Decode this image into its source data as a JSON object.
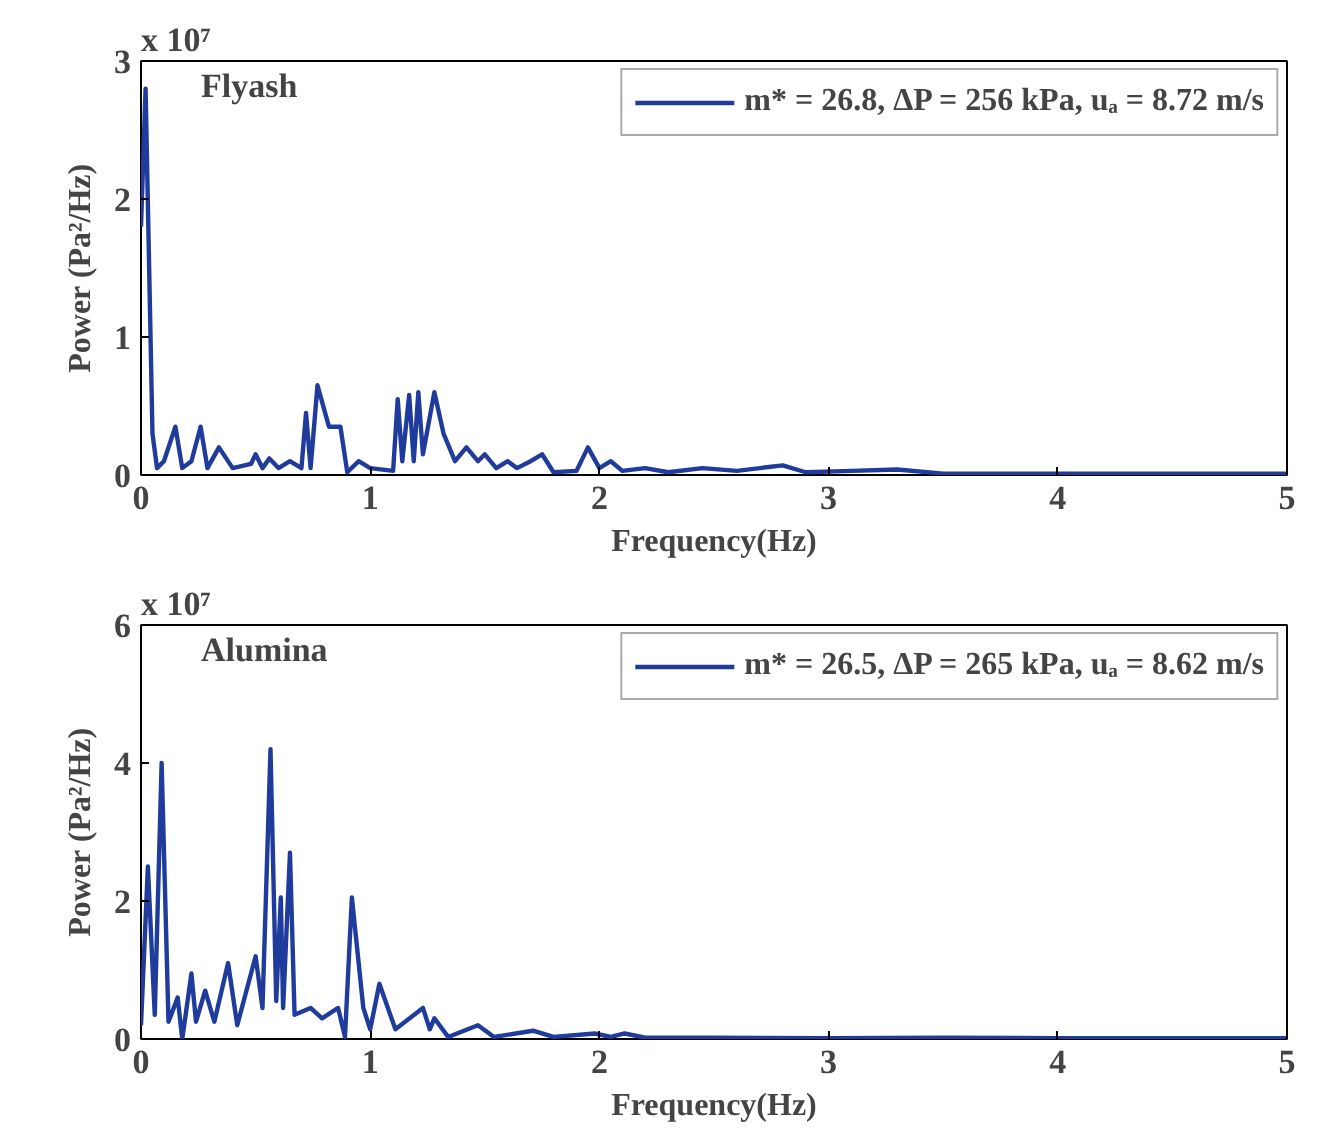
{
  "chart_data": [
    {
      "type": "line",
      "xlabel": "Frequency(Hz)",
      "ylabel": "Power (Pa²/Hz)",
      "annotations": [
        "Flyash",
        "x 10⁷"
      ],
      "xlim": [
        0,
        5
      ],
      "ylim": [
        0,
        3
      ],
      "xticks": [
        0,
        1,
        2,
        3,
        4,
        5
      ],
      "yticks": [
        0,
        1,
        2,
        3
      ],
      "grid": false,
      "legend": "top right",
      "line_style": "solid",
      "series": [
        {
          "name": "m* = 26.8, ΔP = 256 kPa, uₐ = 8.72 m/s",
          "color": "#1f3c9c",
          "x": [
            0,
            0.02,
            0.05,
            0.07,
            0.1,
            0.15,
            0.18,
            0.22,
            0.26,
            0.29,
            0.34,
            0.4,
            0.48,
            0.5,
            0.53,
            0.56,
            0.6,
            0.65,
            0.7,
            0.72,
            0.74,
            0.77,
            0.82,
            0.87,
            0.9,
            0.95,
            1.0,
            1.1,
            1.12,
            1.14,
            1.17,
            1.19,
            1.21,
            1.23,
            1.28,
            1.32,
            1.37,
            1.42,
            1.47,
            1.5,
            1.55,
            1.6,
            1.64,
            1.7,
            1.75,
            1.8,
            1.9,
            1.95,
            2.0,
            2.05,
            2.1,
            2.2,
            2.3,
            2.45,
            2.6,
            2.8,
            2.9,
            3.1,
            3.3,
            3.5,
            4.0,
            5.0
          ],
          "values": [
            1.8,
            2.8,
            0.3,
            0.05,
            0.1,
            0.35,
            0.05,
            0.1,
            0.35,
            0.05,
            0.2,
            0.05,
            0.08,
            0.15,
            0.05,
            0.12,
            0.05,
            0.1,
            0.05,
            0.45,
            0.05,
            0.65,
            0.35,
            0.35,
            0.02,
            0.1,
            0.05,
            0.03,
            0.55,
            0.1,
            0.58,
            0.1,
            0.6,
            0.15,
            0.6,
            0.3,
            0.1,
            0.2,
            0.1,
            0.15,
            0.05,
            0.1,
            0.05,
            0.1,
            0.15,
            0.02,
            0.03,
            0.2,
            0.05,
            0.1,
            0.03,
            0.05,
            0.02,
            0.05,
            0.03,
            0.07,
            0.02,
            0.03,
            0.04,
            0.01,
            0.01,
            0.01
          ]
        }
      ]
    },
    {
      "type": "line",
      "xlabel": "Frequency(Hz)",
      "ylabel": "Power (Pa²/Hz)",
      "annotations": [
        "Alumina",
        "x 10⁷"
      ],
      "xlim": [
        0,
        5
      ],
      "ylim": [
        0,
        6
      ],
      "xticks": [
        0,
        1,
        2,
        3,
        4,
        5
      ],
      "yticks": [
        0,
        2,
        4,
        6
      ],
      "grid": false,
      "legend": "top right",
      "line_style": "solid",
      "series": [
        {
          "name": "m* = 26.5, ΔP = 265 kPa, uₐ = 8.62 m/s",
          "color": "#1f3c9c",
          "x": [
            0,
            0.03,
            0.06,
            0.09,
            0.12,
            0.16,
            0.18,
            0.22,
            0.24,
            0.28,
            0.32,
            0.38,
            0.42,
            0.5,
            0.53,
            0.565,
            0.59,
            0.61,
            0.62,
            0.65,
            0.67,
            0.74,
            0.79,
            0.86,
            0.89,
            0.92,
            0.97,
            1.0,
            1.04,
            1.11,
            1.23,
            1.26,
            1.28,
            1.34,
            1.47,
            1.54,
            1.71,
            1.8,
            1.98,
            2.05,
            2.11,
            2.2,
            2.5,
            3.0,
            3.5,
            4.0,
            4.5,
            5.0
          ],
          "values": [
            0.2,
            2.5,
            0.35,
            4.0,
            0.25,
            0.6,
            0.0,
            0.95,
            0.25,
            0.7,
            0.25,
            1.1,
            0.2,
            1.2,
            0.45,
            4.2,
            0.55,
            2.05,
            0.45,
            2.7,
            0.35,
            0.45,
            0.3,
            0.45,
            0.03,
            2.05,
            0.45,
            0.14,
            0.8,
            0.14,
            0.45,
            0.14,
            0.3,
            0.03,
            0.2,
            0.03,
            0.12,
            0.03,
            0.08,
            0.03,
            0.08,
            0.02,
            0.02,
            0.01,
            0.02,
            0.01,
            0.01,
            0.01
          ]
        }
      ]
    }
  ]
}
